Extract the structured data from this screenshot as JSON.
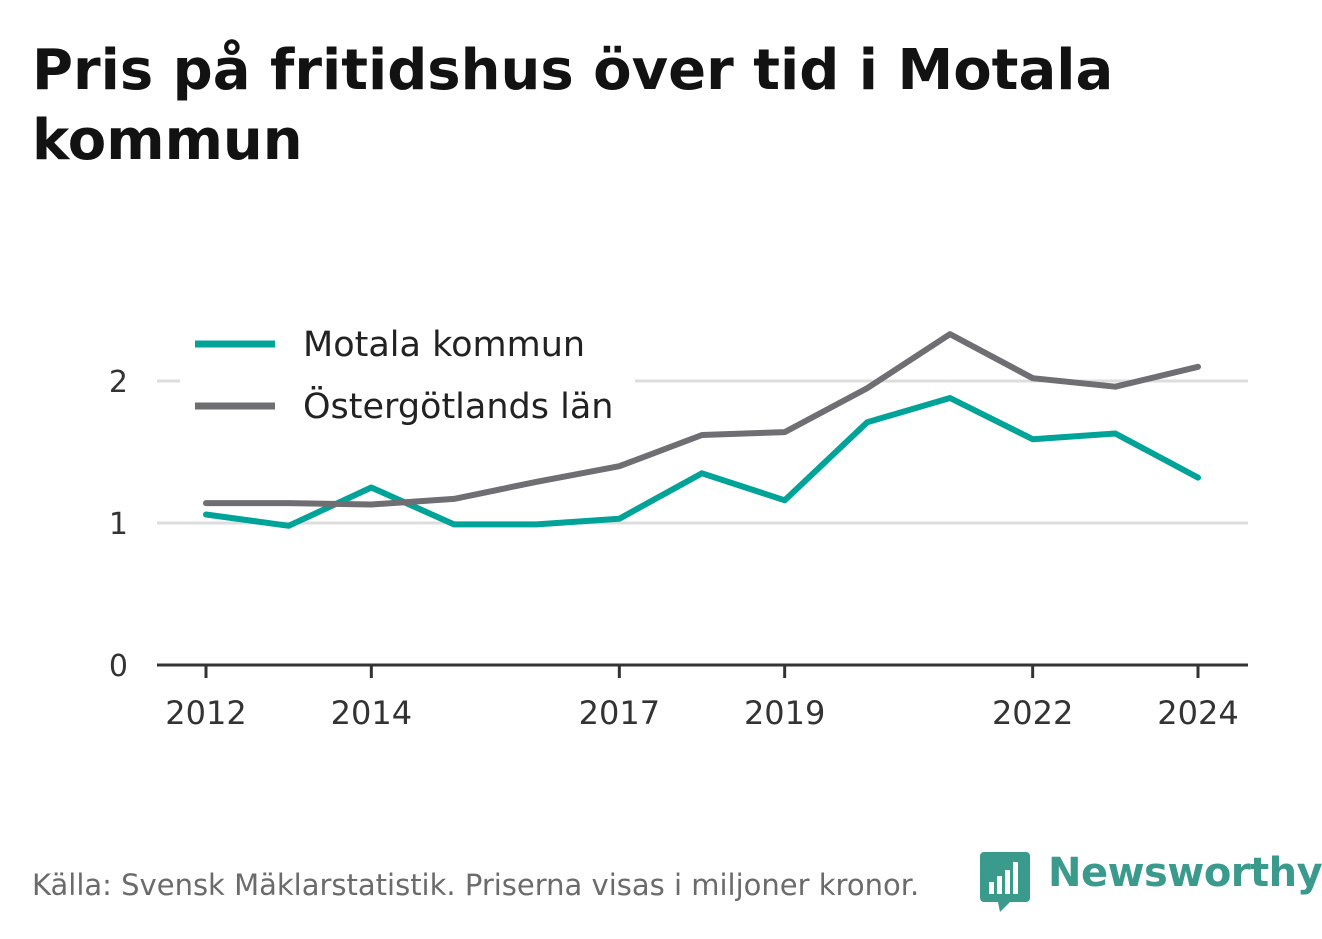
{
  "title": "Pris på fritidshus över tid i Motala kommun",
  "footer": {
    "source": "Källa: Svensk Mäklarstatistik. Priserna visas i miljoner kronor.",
    "brand": "Newsworthy"
  },
  "colors": {
    "motala": "#00a398",
    "lan": "#6e6e73",
    "grid": "#dddddd",
    "axis": "#333333",
    "brand": "#3a9a8c"
  },
  "chart_data": {
    "type": "line",
    "x": [
      2012,
      2013,
      2014,
      2015,
      2016,
      2017,
      2018,
      2019,
      2020,
      2021,
      2022,
      2023,
      2024
    ],
    "xticks": [
      "2012",
      "2014",
      "2017",
      "2019",
      "2022",
      "2024"
    ],
    "yticks": [
      "0",
      "1",
      "2"
    ],
    "ylim": [
      0,
      2.45
    ],
    "grid": true,
    "legend_position": "top-left",
    "series": [
      {
        "name": "Motala kommun",
        "color": "#00a398",
        "values": [
          1.06,
          0.98,
          1.25,
          0.99,
          0.99,
          1.03,
          1.35,
          1.16,
          1.71,
          1.88,
          1.59,
          1.63,
          1.32
        ]
      },
      {
        "name": "Östergötlands län",
        "color": "#6e6e73",
        "values": [
          1.14,
          1.14,
          1.13,
          1.17,
          1.29,
          1.4,
          1.62,
          1.64,
          1.95,
          2.33,
          2.02,
          1.96,
          2.1
        ]
      }
    ]
  }
}
